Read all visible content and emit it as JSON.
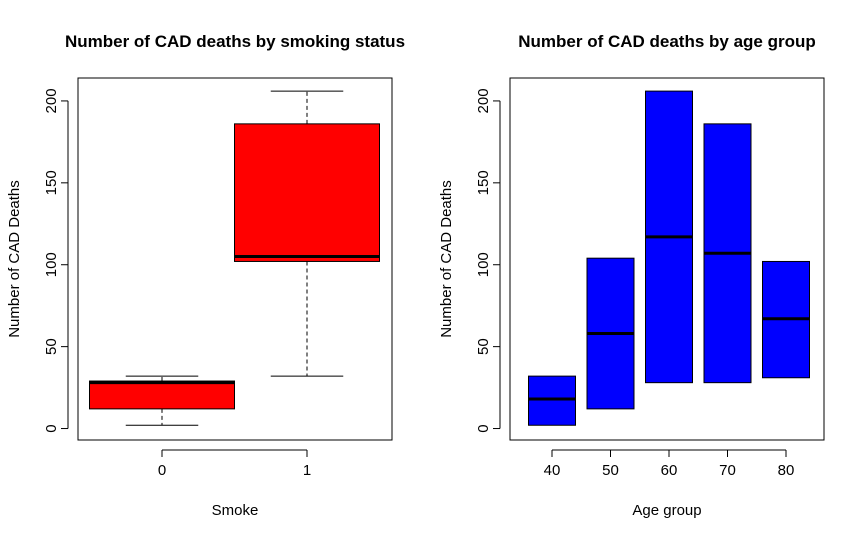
{
  "chart_data": [
    {
      "type": "boxplot",
      "title": "Number of CAD deaths by smoking status",
      "xlabel": "Smoke",
      "ylabel": "Number of CAD Deaths",
      "categories": [
        "0",
        "1"
      ],
      "yticks": [
        "0",
        "50",
        "100",
        "150",
        "200"
      ],
      "ylim": [
        -7,
        214
      ],
      "fill_color": "#ff0000",
      "boxes": [
        {
          "category": "0",
          "whisker_low": 2,
          "q1": 12,
          "median": 28,
          "q3": 29,
          "whisker_high": 32
        },
        {
          "category": "1",
          "whisker_low": 32,
          "q1": 102,
          "median": 105,
          "q3": 186,
          "whisker_high": 206
        }
      ]
    },
    {
      "type": "boxplot",
      "title": "Number of CAD deaths by age group",
      "xlabel": "Age group",
      "ylabel": "Number of CAD Deaths",
      "categories": [
        "40",
        "50",
        "60",
        "70",
        "80"
      ],
      "yticks": [
        "0",
        "50",
        "100",
        "150",
        "200"
      ],
      "ylim": [
        -7,
        214
      ],
      "fill_color": "#0000ff",
      "boxes": [
        {
          "category": "40",
          "q1": 2,
          "median": 18,
          "q3": 32
        },
        {
          "category": "50",
          "q1": 12,
          "median": 58,
          "q3": 104
        },
        {
          "category": "60",
          "q1": 28,
          "median": 117,
          "q3": 206
        },
        {
          "category": "70",
          "q1": 28,
          "median": 107,
          "q3": 186
        },
        {
          "category": "80",
          "q1": 31,
          "median": 67,
          "q3": 102
        }
      ]
    }
  ]
}
